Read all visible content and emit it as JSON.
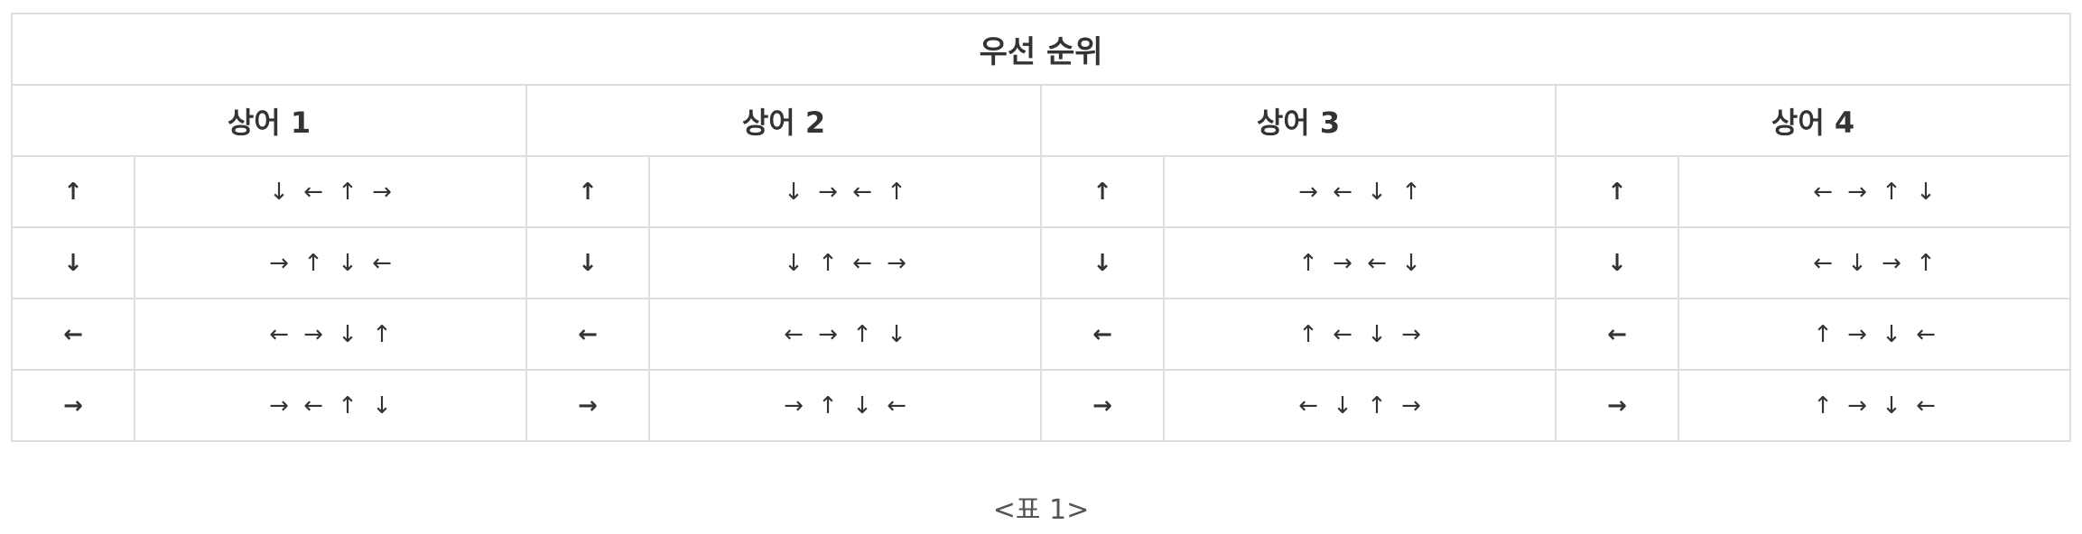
{
  "table": {
    "title": "우선 순위",
    "sharks": [
      {
        "name": "상어 1",
        "rows": [
          {
            "dir": "↑",
            "priority": [
              "↓",
              "←",
              "↑",
              "→"
            ]
          },
          {
            "dir": "↓",
            "priority": [
              "→",
              "↑",
              "↓",
              "←"
            ]
          },
          {
            "dir": "←",
            "priority": [
              "←",
              "→",
              "↓",
              "↑"
            ]
          },
          {
            "dir": "→",
            "priority": [
              "→",
              "←",
              "↑",
              "↓"
            ]
          }
        ]
      },
      {
        "name": "상어 2",
        "rows": [
          {
            "dir": "↑",
            "priority": [
              "↓",
              "→",
              "←",
              "↑"
            ]
          },
          {
            "dir": "↓",
            "priority": [
              "↓",
              "↑",
              "←",
              "→"
            ]
          },
          {
            "dir": "←",
            "priority": [
              "←",
              "→",
              "↑",
              "↓"
            ]
          },
          {
            "dir": "→",
            "priority": [
              "→",
              "↑",
              "↓",
              "←"
            ]
          }
        ]
      },
      {
        "name": "상어 3",
        "rows": [
          {
            "dir": "↑",
            "priority": [
              "→",
              "←",
              "↓",
              "↑"
            ]
          },
          {
            "dir": "↓",
            "priority": [
              "↑",
              "→",
              "←",
              "↓"
            ]
          },
          {
            "dir": "←",
            "priority": [
              "↑",
              "←",
              "↓",
              "→"
            ]
          },
          {
            "dir": "→",
            "priority": [
              "←",
              "↓",
              "↑",
              "→"
            ]
          }
        ]
      },
      {
        "name": "상어 4",
        "rows": [
          {
            "dir": "↑",
            "priority": [
              "←",
              "→",
              "↑",
              "↓"
            ]
          },
          {
            "dir": "↓",
            "priority": [
              "←",
              "↓",
              "→",
              "↑"
            ]
          },
          {
            "dir": "←",
            "priority": [
              "↑",
              "→",
              "↓",
              "←"
            ]
          },
          {
            "dir": "→",
            "priority": [
              "↑",
              "→",
              "↓",
              "←"
            ]
          }
        ]
      }
    ]
  },
  "caption": "<표 1>"
}
